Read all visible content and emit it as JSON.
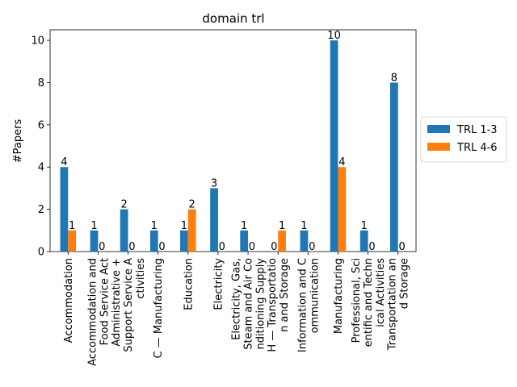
{
  "chart_data": {
    "type": "bar",
    "title": "domain trl",
    "xlabel": "",
    "ylabel": "#Papers",
    "ylim": [
      0,
      10.5
    ],
    "yticks": [
      0,
      2,
      4,
      6,
      8,
      10
    ],
    "grid": false,
    "legend_position": "right",
    "categories": [
      "Accommodation",
      "Accommodation and Food Service Act",
      "Administrative + Support Service A ctivities",
      "C — Manufacturing",
      "Education",
      "Electricity",
      "Electricity, Gas, Steam and Air Co nditioning Supply",
      "H — Transportatio n and Storage",
      "Information and C ommunication",
      "Manufacturing",
      "Professional, Sci entific and Techn ical Activities",
      "Transportation an d Storage"
    ],
    "category_lines": [
      [
        "Accommodation"
      ],
      [
        "Accommodation and",
        "Food Service Act"
      ],
      [
        "Administrative +",
        "Support Service A",
        "ctivities"
      ],
      [
        "C — Manufacturing"
      ],
      [
        "Education"
      ],
      [
        "Electricity"
      ],
      [
        "Electricity, Gas,",
        "Steam and Air Co",
        "nditioning Supply"
      ],
      [
        "H — Transportatio",
        "n and Storage"
      ],
      [
        "Information and C",
        "ommunication"
      ],
      [
        "Manufacturing"
      ],
      [
        "Professional, Sci",
        "entific and Techn",
        "ical Activities"
      ],
      [
        "Transportation an",
        "d Storage"
      ]
    ],
    "series": [
      {
        "name": "TRL 1-3",
        "color": "#1f77b4",
        "values": [
          4,
          1,
          2,
          1,
          1,
          3,
          1,
          0,
          1,
          10,
          1,
          8
        ]
      },
      {
        "name": "TRL 4-6",
        "color": "#ff7f0e",
        "values": [
          1,
          0,
          0,
          0,
          2,
          0,
          0,
          1,
          0,
          4,
          0,
          0
        ]
      }
    ]
  }
}
